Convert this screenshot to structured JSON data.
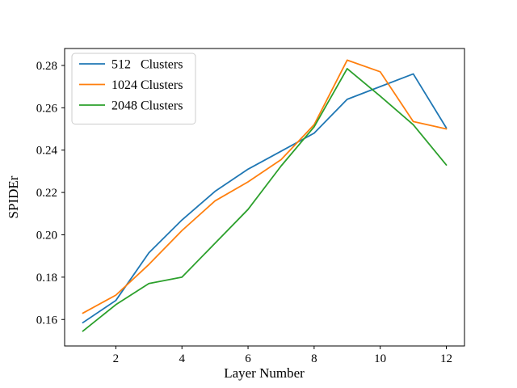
{
  "chart_data": {
    "type": "line",
    "title": "",
    "xlabel": "Layer Number",
    "ylabel": "SPIDEr",
    "x": [
      1,
      2,
      3,
      4,
      5,
      6,
      7,
      8,
      9,
      10,
      11,
      12
    ],
    "series": [
      {
        "name": "512   Clusters",
        "color": "#1f77b4",
        "values": [
          0.1585,
          0.169,
          0.1915,
          0.207,
          0.2205,
          0.231,
          0.2395,
          0.248,
          0.264,
          0.27,
          0.276,
          0.2505
        ]
      },
      {
        "name": "1024 Clusters",
        "color": "#ff7f0e",
        "values": [
          0.163,
          0.1715,
          0.186,
          0.202,
          0.216,
          0.225,
          0.2355,
          0.252,
          0.2825,
          0.277,
          0.2535,
          0.25
        ]
      },
      {
        "name": "2048 Clusters",
        "color": "#2ca02c",
        "values": [
          0.1545,
          0.167,
          0.177,
          0.18,
          0.196,
          0.212,
          0.2325,
          0.251,
          0.2785,
          0.2655,
          0.252,
          0.233
        ]
      }
    ],
    "xticks": [
      2,
      4,
      6,
      8,
      10,
      12
    ],
    "yticks": [
      0.16,
      0.18,
      0.2,
      0.22,
      0.24,
      0.26,
      0.28
    ],
    "xlim": [
      0.45,
      12.55
    ],
    "ylim": [
      0.1475,
      0.288
    ],
    "grid": false,
    "legend_position": "upper left",
    "axis_color": "#000000",
    "background_color": "#ffffff"
  }
}
